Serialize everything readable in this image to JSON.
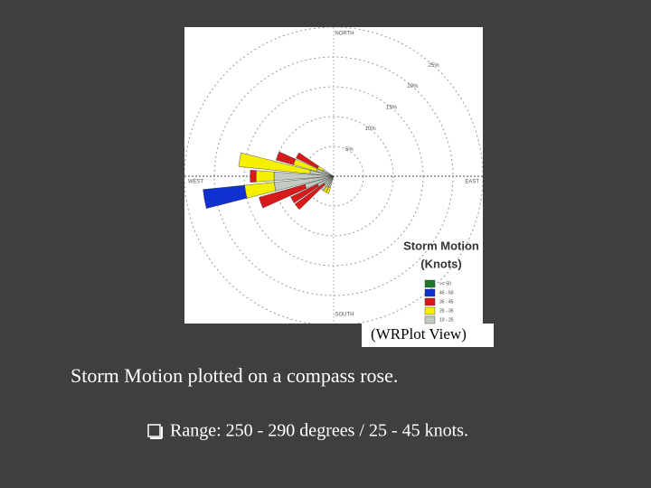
{
  "slide": {
    "caption": "(WRPlot View)",
    "heading": "Storm Motion plotted on a compass rose.",
    "bullet": "Range: 250 - 290 degrees / 25 - 45 knots."
  },
  "chart_data": {
    "type": "windrose",
    "compass": {
      "north": "NORTH",
      "south": "SOUTH",
      "east": "EAST",
      "west": "WEST"
    },
    "legend_title": [
      "Storm Motion",
      "(Knots)"
    ],
    "directions": [
      200,
      210,
      220,
      230,
      240,
      250,
      260,
      270,
      280,
      290,
      300
    ],
    "series": [
      {
        "name": ">= 50",
        "color": "#1a7a2a",
        "values": [
          0,
          0,
          0,
          0,
          0,
          0,
          0,
          0,
          0,
          0,
          0
        ]
      },
      {
        "name": "45 - 50",
        "color": "#1030d0",
        "values": [
          0,
          0,
          0,
          0,
          0,
          0,
          7,
          0,
          0,
          0,
          0
        ]
      },
      {
        "name": "35 - 45",
        "color": "#d81a1a",
        "values": [
          0,
          0,
          0,
          6,
          5,
          8,
          0,
          1,
          0,
          3,
          4
        ]
      },
      {
        "name": "25 - 35",
        "color": "#f5f000",
        "values": [
          1,
          1,
          0,
          0,
          0,
          0,
          5,
          3,
          12,
          4,
          1
        ]
      },
      {
        "name": "10 - 25",
        "color": "#c2cbbf",
        "values": [
          2,
          2,
          3,
          2,
          3,
          5,
          10,
          10,
          4,
          3,
          2
        ]
      }
    ],
    "rlim": [
      0,
      25
    ],
    "rticks": [
      {
        "value": 5,
        "label": "5%"
      },
      {
        "value": 10,
        "label": "10%"
      },
      {
        "value": 15,
        "label": "15%"
      },
      {
        "value": 20,
        "label": "20%"
      },
      {
        "value": 25,
        "label": "25%"
      }
    ],
    "grid": true
  }
}
